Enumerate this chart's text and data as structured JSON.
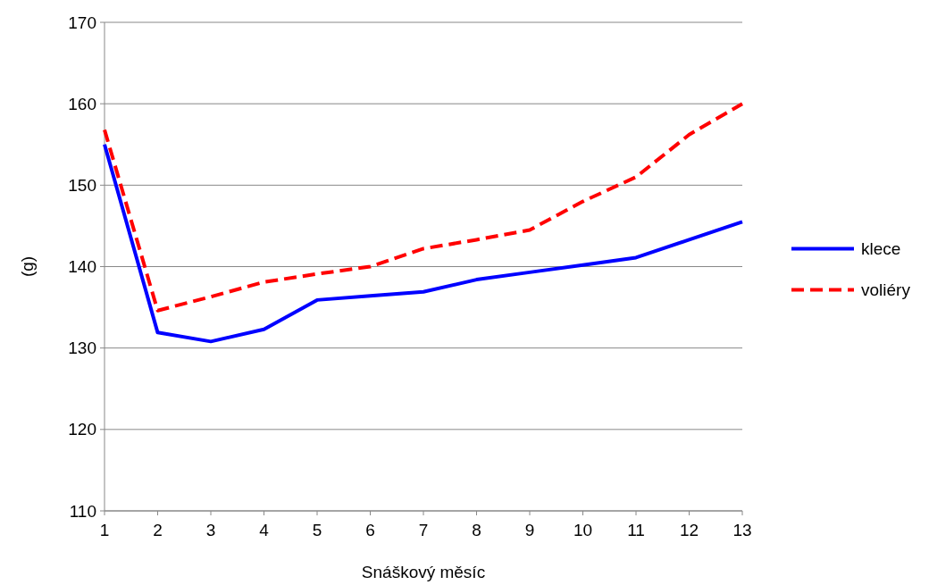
{
  "chart_data": {
    "type": "line",
    "xlabel": "Snáškový měsíc",
    "ylabel": "(g)",
    "x": [
      1,
      2,
      3,
      4,
      5,
      6,
      7,
      8,
      9,
      10,
      11,
      12,
      13
    ],
    "series": [
      {
        "name": "klece",
        "color": "#0000ff",
        "line_style": "solid",
        "values": [
          155,
          131.9,
          130.8,
          132.3,
          135.9,
          136.4,
          136.9,
          138.4,
          139.3,
          140.2,
          141.1,
          143.3,
          145.5
        ]
      },
      {
        "name": "voliéry",
        "color": "#ff0000",
        "line_style": "dashed",
        "values": [
          156.8,
          134.6,
          136.3,
          138.1,
          139.1,
          140.0,
          142.2,
          143.3,
          144.5,
          148.0,
          151.0,
          156.2,
          160.0
        ]
      }
    ],
    "xlim": [
      1,
      13
    ],
    "xticks": [
      1,
      2,
      3,
      4,
      5,
      6,
      7,
      8,
      9,
      10,
      11,
      12,
      13
    ],
    "ylim": [
      110,
      170
    ],
    "yticks": [
      110,
      120,
      130,
      140,
      150,
      160,
      170
    ],
    "grid": "y",
    "legend": "right"
  }
}
